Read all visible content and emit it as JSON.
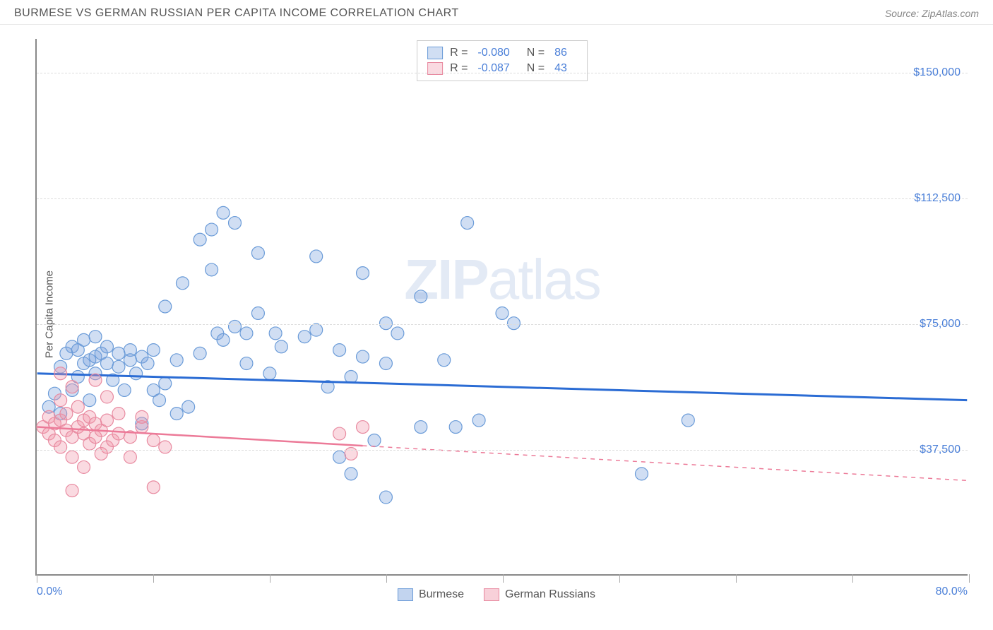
{
  "title": "BURMESE VS GERMAN RUSSIAN PER CAPITA INCOME CORRELATION CHART",
  "source_label": "Source: ",
  "source_name": "ZipAtlas.com",
  "ylabel": "Per Capita Income",
  "watermark_bold": "ZIP",
  "watermark_light": "atlas",
  "chart": {
    "type": "scatter",
    "xlim": [
      0,
      80
    ],
    "ylim": [
      0,
      160000
    ],
    "x_unit": "%",
    "y_unit": "$",
    "yticks": [
      37500,
      75000,
      112500,
      150000
    ],
    "ytick_labels": [
      "$37,500",
      "$75,000",
      "$112,500",
      "$150,000"
    ],
    "xtick_positions": [
      0,
      10,
      20,
      30,
      40,
      50,
      60,
      70,
      80
    ],
    "xlabel_min": "0.0%",
    "xlabel_max": "80.0%",
    "grid_color": "#dddddd",
    "background_color": "#ffffff",
    "series": [
      {
        "name": "Burmese",
        "color_fill": "rgba(120,160,220,0.35)",
        "color_stroke": "#6a9bd8",
        "marker_radius": 9,
        "trend": {
          "slope_y_at_x0": 60000,
          "slope_y_at_x80": 52000,
          "color": "#2b6cd4",
          "width": 3,
          "solid_end_x": 80
        },
        "R_label": "R = ",
        "R_value": "-0.080",
        "N_label": "N = ",
        "N_value": "86",
        "points": [
          [
            1,
            50000
          ],
          [
            1.5,
            54000
          ],
          [
            2,
            48000
          ],
          [
            2,
            62000
          ],
          [
            2.5,
            66000
          ],
          [
            3,
            55000
          ],
          [
            3,
            68000
          ],
          [
            3.5,
            67000
          ],
          [
            3.5,
            59000
          ],
          [
            4,
            70000
          ],
          [
            4,
            63000
          ],
          [
            4.5,
            64000
          ],
          [
            4.5,
            52000
          ],
          [
            5,
            65000
          ],
          [
            5,
            60000
          ],
          [
            5,
            71000
          ],
          [
            5.5,
            66000
          ],
          [
            6,
            63000
          ],
          [
            6,
            68000
          ],
          [
            6.5,
            58000
          ],
          [
            7,
            66000
          ],
          [
            7,
            62000
          ],
          [
            7.5,
            55000
          ],
          [
            8,
            67000
          ],
          [
            8,
            64000
          ],
          [
            8.5,
            60000
          ],
          [
            9,
            65000
          ],
          [
            9,
            45000
          ],
          [
            9.5,
            63000
          ],
          [
            10,
            55000
          ],
          [
            10,
            67000
          ],
          [
            10.5,
            52000
          ],
          [
            11,
            57000
          ],
          [
            11,
            80000
          ],
          [
            12,
            64000
          ],
          [
            12,
            48000
          ],
          [
            12.5,
            87000
          ],
          [
            13,
            50000
          ],
          [
            14,
            66000
          ],
          [
            14,
            100000
          ],
          [
            15,
            103000
          ],
          [
            15,
            91000
          ],
          [
            15.5,
            72000
          ],
          [
            16,
            70000
          ],
          [
            16,
            108000
          ],
          [
            17,
            74000
          ],
          [
            17,
            105000
          ],
          [
            18,
            72000
          ],
          [
            18,
            63000
          ],
          [
            19,
            78000
          ],
          [
            19,
            96000
          ],
          [
            20,
            60000
          ],
          [
            20.5,
            72000
          ],
          [
            21,
            68000
          ],
          [
            23,
            71000
          ],
          [
            24,
            95000
          ],
          [
            24,
            73000
          ],
          [
            25,
            56000
          ],
          [
            26,
            35000
          ],
          [
            26,
            67000
          ],
          [
            27,
            30000
          ],
          [
            27,
            59000
          ],
          [
            28,
            90000
          ],
          [
            28,
            65000
          ],
          [
            29,
            40000
          ],
          [
            30,
            63000
          ],
          [
            30,
            23000
          ],
          [
            30,
            75000
          ],
          [
            31,
            72000
          ],
          [
            33,
            83000
          ],
          [
            33,
            44000
          ],
          [
            35,
            64000
          ],
          [
            36,
            44000
          ],
          [
            37,
            105000
          ],
          [
            38,
            46000
          ],
          [
            40,
            78000
          ],
          [
            41,
            75000
          ],
          [
            52,
            30000
          ],
          [
            56,
            46000
          ]
        ]
      },
      {
        "name": "German Russians",
        "color_fill": "rgba(240,150,170,0.35)",
        "color_stroke": "#e88aa0",
        "marker_radius": 9,
        "trend": {
          "slope_y_at_x0": 44000,
          "slope_y_at_x80": 28000,
          "color": "#ec7a98",
          "width": 2.5,
          "solid_end_x": 28,
          "dash_after": true
        },
        "R_label": "R = ",
        "R_value": "-0.087",
        "N_label": "N = ",
        "N_value": "43",
        "points": [
          [
            0.5,
            44000
          ],
          [
            1,
            42000
          ],
          [
            1,
            47000
          ],
          [
            1.5,
            45000
          ],
          [
            1.5,
            40000
          ],
          [
            2,
            46000
          ],
          [
            2,
            38000
          ],
          [
            2,
            52000
          ],
          [
            2.5,
            43000
          ],
          [
            2.5,
            48000
          ],
          [
            3,
            41000
          ],
          [
            3,
            56000
          ],
          [
            3,
            35000
          ],
          [
            3.5,
            44000
          ],
          [
            3.5,
            50000
          ],
          [
            4,
            42000
          ],
          [
            4,
            46000
          ],
          [
            4.5,
            39000
          ],
          [
            4.5,
            47000
          ],
          [
            5,
            45000
          ],
          [
            5,
            41000
          ],
          [
            5.5,
            43000
          ],
          [
            5.5,
            36000
          ],
          [
            6,
            38000
          ],
          [
            6,
            46000
          ],
          [
            6,
            53000
          ],
          [
            6.5,
            40000
          ],
          [
            7,
            42000
          ],
          [
            7,
            48000
          ],
          [
            8,
            41000
          ],
          [
            8,
            35000
          ],
          [
            9,
            44000
          ],
          [
            9,
            47000
          ],
          [
            10,
            26000
          ],
          [
            10,
            40000
          ],
          [
            11,
            38000
          ],
          [
            3,
            25000
          ],
          [
            4,
            32000
          ],
          [
            26,
            42000
          ],
          [
            27,
            36000
          ],
          [
            28,
            44000
          ],
          [
            2,
            60000
          ],
          [
            5,
            58000
          ]
        ]
      }
    ]
  },
  "legend_bottom": [
    {
      "label": "Burmese",
      "fill": "rgba(120,160,220,0.45)",
      "stroke": "#6a9bd8"
    },
    {
      "label": "German Russians",
      "fill": "rgba(240,150,170,0.45)",
      "stroke": "#e88aa0"
    }
  ]
}
